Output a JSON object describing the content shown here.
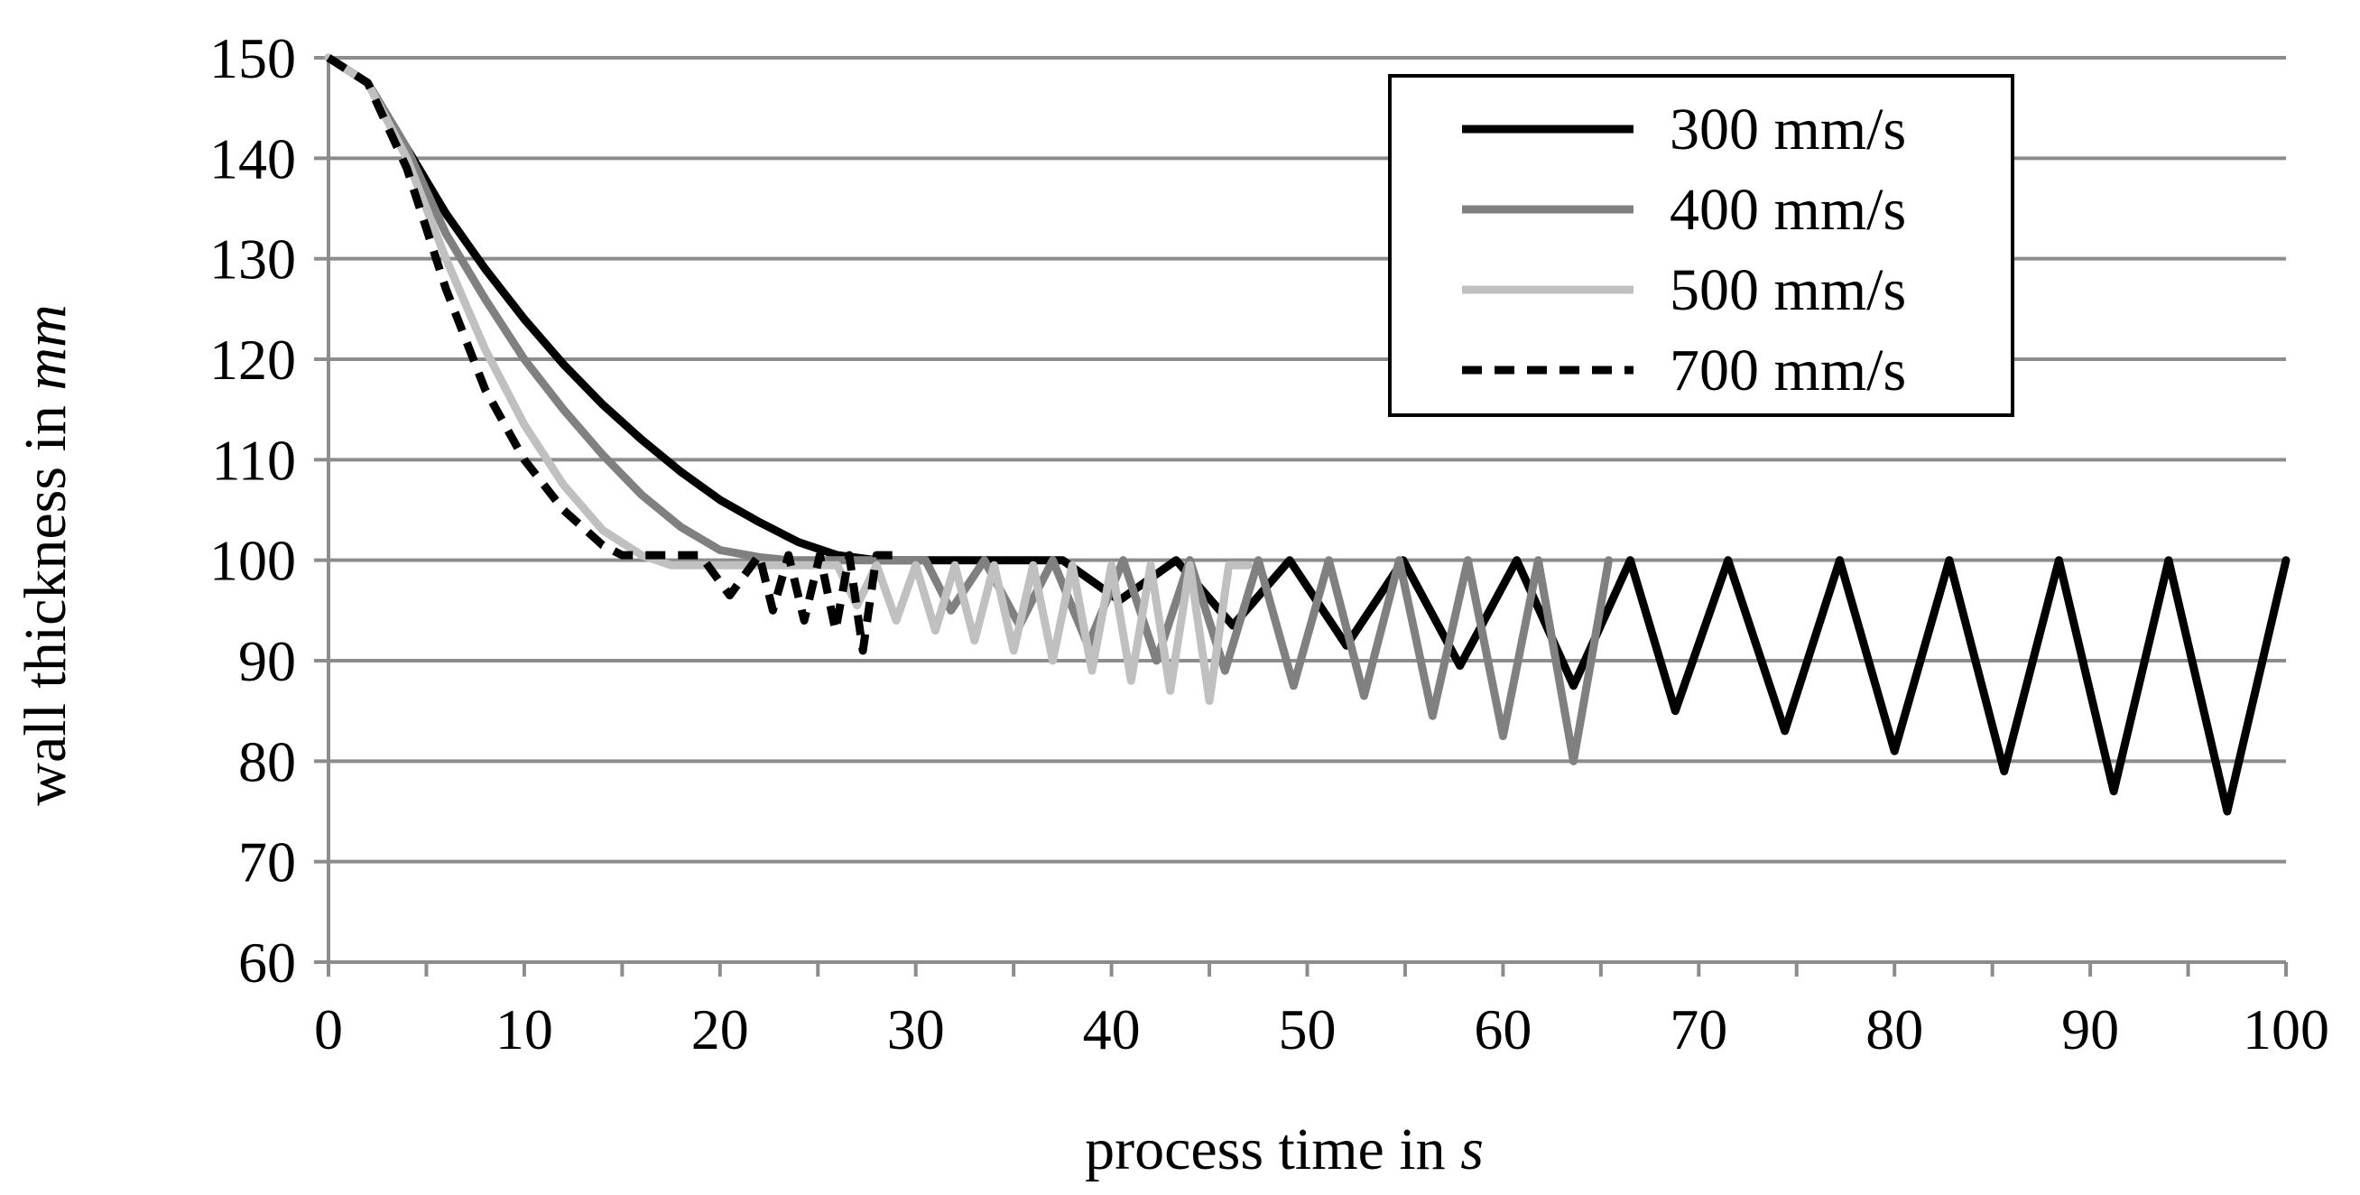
{
  "chart_data": {
    "type": "line",
    "title": "",
    "xlabel_prefix": "process time in ",
    "xlabel_unit": "s",
    "ylabel_prefix": "wall thickness in ",
    "ylabel_unit": "mm",
    "xlim": [
      0,
      100
    ],
    "ylim": [
      60,
      150
    ],
    "xticks": [
      0,
      10,
      20,
      30,
      40,
      50,
      60,
      70,
      80,
      90,
      100
    ],
    "yticks": [
      60,
      70,
      80,
      90,
      100,
      110,
      120,
      130,
      140,
      150
    ],
    "xtick_labels": [
      "0",
      "10",
      "20",
      "30",
      "40",
      "50",
      "60",
      "70",
      "80",
      "90",
      "100"
    ],
    "ytick_labels": [
      "60",
      "70",
      "80",
      "90",
      "100",
      "110",
      "120",
      "130",
      "140",
      "150"
    ],
    "grid": "horizontal",
    "legend_position": "top-right",
    "series": [
      {
        "name": "300 mm/s",
        "color": "#000000",
        "dash": "solid",
        "x": [
          0,
          2,
          4,
          6,
          8,
          10,
          12,
          14,
          16,
          18,
          20,
          22,
          24,
          26,
          28,
          30,
          37.5,
          40.4,
          43.3,
          46.2,
          49.1,
          52,
          54.9,
          57.8,
          60.7,
          63.6,
          66.5,
          68.8,
          71.5,
          74.4,
          77.2,
          80,
          82.8,
          85.6,
          88.4,
          91.2,
          94,
          97,
          100
        ],
        "values": [
          150,
          147.5,
          141,
          134.5,
          129,
          124,
          119.5,
          115.5,
          112,
          108.8,
          106,
          103.8,
          101.8,
          100.5,
          100,
          100,
          100,
          96,
          100,
          93.5,
          100,
          91.5,
          100,
          89.5,
          100,
          87.5,
          100,
          85,
          100,
          83,
          100,
          81,
          100,
          79,
          100,
          77,
          100,
          75,
          100
        ]
      },
      {
        "name": "400 mm/s",
        "color": "#808080",
        "dash": "solid",
        "x": [
          0,
          2,
          4,
          6,
          8,
          10,
          12,
          14,
          16,
          18,
          20,
          22,
          23.5,
          30.5,
          31.8,
          33.5,
          35.3,
          37,
          38.8,
          40.6,
          42.3,
          44,
          45.8,
          47.5,
          49.3,
          51.1,
          52.9,
          54.7,
          56.4,
          58.2,
          60,
          61.8,
          63.6,
          65.4
        ],
        "values": [
          150,
          147.5,
          141,
          132.5,
          126,
          120,
          115,
          110.5,
          106.5,
          103.3,
          101,
          100.3,
          100,
          100,
          95,
          100,
          93.5,
          100,
          91.5,
          100,
          90,
          100,
          89,
          100,
          87.5,
          100,
          86.5,
          100,
          84.5,
          100,
          82.5,
          100,
          80,
          100
        ]
      },
      {
        "name": "500 mm/s",
        "color": "#c0c0c0",
        "dash": "solid",
        "x": [
          0,
          2,
          4,
          6,
          8,
          10,
          12,
          14,
          16,
          17.5,
          26,
          27,
          28,
          29,
          30,
          31,
          32,
          33,
          34,
          35,
          36,
          37,
          38,
          39,
          40,
          41,
          42,
          43,
          44,
          45,
          46,
          47
        ],
        "values": [
          150,
          147.5,
          140,
          130,
          121,
          113.5,
          107.5,
          103,
          100.5,
          99.5,
          99.5,
          95.5,
          99.5,
          94,
          99.5,
          93,
          99.5,
          92,
          99.5,
          91,
          99.5,
          90,
          99.5,
          89,
          99.5,
          88,
          99.5,
          87,
          99.5,
          86,
          99.5,
          99.5
        ]
      },
      {
        "name": "700 mm/s",
        "color": "#000000",
        "dash": "dashed",
        "x": [
          0,
          2,
          4,
          6,
          8,
          10,
          12,
          14,
          15,
          19,
          20.5,
          22,
          22.7,
          23.5,
          24.3,
          25.1,
          25.9,
          26.6,
          27.3,
          28,
          28.8
        ],
        "values": [
          150,
          147.5,
          139,
          127,
          117,
          110,
          105,
          101.5,
          100.5,
          100.5,
          96.5,
          100.5,
          95,
          100.5,
          94,
          100.5,
          93,
          100.5,
          91,
          100.5,
          100.5
        ]
      }
    ]
  }
}
